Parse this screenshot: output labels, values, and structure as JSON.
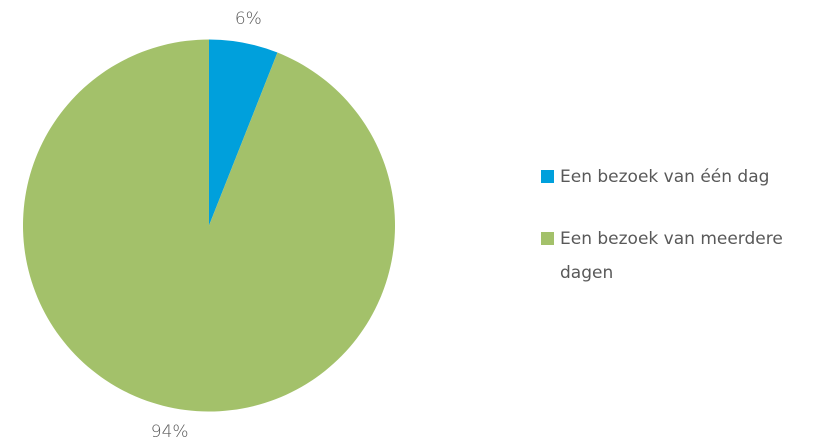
{
  "chart_data": {
    "type": "pie",
    "categories": [
      "Een bezoek van één dag",
      "Een bezoek van meerdere dagen"
    ],
    "values": [
      6,
      94
    ],
    "value_labels": [
      "6%",
      "94%"
    ],
    "colors": [
      "#00a0dc",
      "#a3c16a"
    ],
    "legend": "right"
  }
}
